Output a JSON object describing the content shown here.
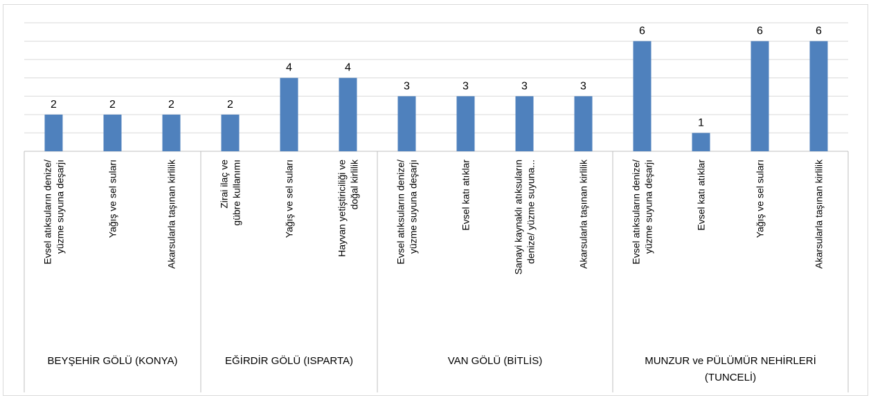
{
  "chart_data": {
    "type": "bar",
    "color": "#4f81bd",
    "ylim": [
      0,
      7
    ],
    "yticks": [
      0,
      1,
      2,
      3,
      4,
      5,
      6,
      7
    ],
    "grid": true,
    "groups": [
      {
        "name": "BEYŞEHİR GÖLÜ (KONYA)",
        "categories": [
          "Evsel atıksuların denize/\nyüzme suyuna deşarjı",
          "Yağış ve sel suları",
          "Akarsularla taşınan kirlilik"
        ],
        "values": [
          2,
          2,
          2
        ]
      },
      {
        "name": "EĞİRDİR GÖLÜ (ISPARTA)",
        "categories": [
          "Zirai ilaç ve\ngübre kullanımı",
          "Yağış ve sel suları",
          "Hayvan yetiştiriciliği ve\ndoğal kirlilik"
        ],
        "values": [
          2,
          4,
          4
        ]
      },
      {
        "name": "VAN GÖLÜ (BİTLİS)",
        "categories": [
          "Evsel atıksuların denize/\nyüzme suyuna deşarjı",
          "Evsel katı atıklar",
          "Sanayi kaynaklı atıksuların\ndenize/ yüzme suyuna...",
          "Akarsularla taşınan kirlilik"
        ],
        "values": [
          3,
          3,
          3,
          3
        ]
      },
      {
        "name": "MUNZUR ve PÜLÜMÜR NEHİRLERİ\n(TUNCELİ)",
        "categories": [
          "Evsel atıksuların denize/\nyüzme suyuna deşarjı",
          "Evsel katı atıklar",
          "Yağış ve sel suları",
          "Akarsularla taşınan kirlilik"
        ],
        "values": [
          6,
          1,
          6,
          6
        ]
      }
    ]
  }
}
